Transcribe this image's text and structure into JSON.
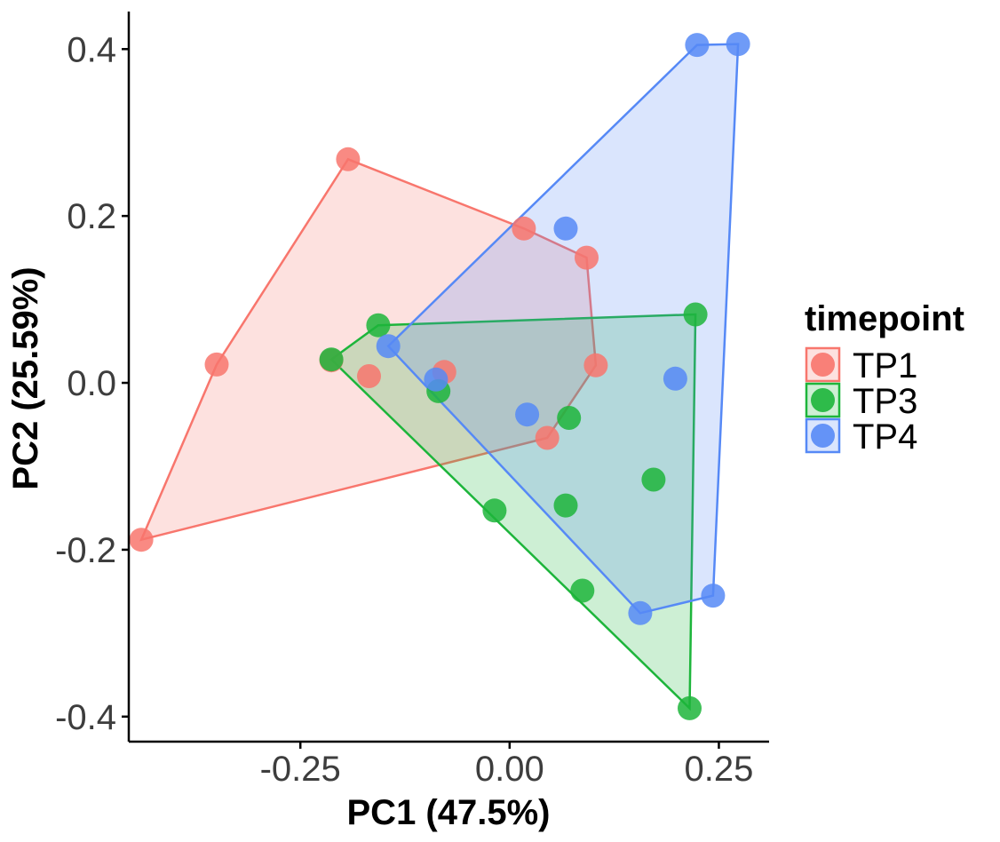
{
  "chart_data": {
    "type": "scatter",
    "title": "",
    "xlabel": "PC1 (47.5%)",
    "ylabel": "PC2 (25.59%)",
    "xlim": [
      -0.455,
      0.31
    ],
    "ylim": [
      -0.43,
      0.445
    ],
    "xticks": [
      {
        "value": -0.25,
        "label": "-0.25"
      },
      {
        "value": 0.0,
        "label": "0.00"
      },
      {
        "value": 0.25,
        "label": "0.25"
      }
    ],
    "yticks": [
      {
        "value": -0.4,
        "label": "-0.4"
      },
      {
        "value": -0.2,
        "label": "-0.2"
      },
      {
        "value": 0.0,
        "label": "0.0"
      },
      {
        "value": 0.2,
        "label": "0.2"
      },
      {
        "value": 0.4,
        "label": "0.4"
      }
    ],
    "grid": false,
    "legend": {
      "title": "timepoint",
      "position": "right"
    },
    "series": [
      {
        "name": "TP1",
        "color": "#F8766D",
        "hull": true,
        "points": [
          [
            -0.44,
            -0.188
          ],
          [
            -0.35,
            0.022
          ],
          [
            -0.193,
            0.268
          ],
          [
            0.017,
            0.185
          ],
          [
            0.092,
            0.15
          ],
          [
            0.103,
            0.021
          ],
          [
            0.045,
            -0.066
          ],
          [
            -0.078,
            0.013
          ],
          [
            -0.168,
            0.008
          ],
          [
            -0.213,
            0.027
          ]
        ],
        "hull_order": [
          [
            -0.44,
            -0.188
          ],
          [
            -0.35,
            0.022
          ],
          [
            -0.193,
            0.268
          ],
          [
            0.017,
            0.185
          ],
          [
            0.092,
            0.15
          ],
          [
            0.103,
            0.021
          ],
          [
            0.045,
            -0.066
          ]
        ]
      },
      {
        "name": "TP3",
        "color": "#1DB53B",
        "hull": true,
        "points": [
          [
            -0.213,
            0.028
          ],
          [
            -0.157,
            0.069
          ],
          [
            -0.085,
            -0.01
          ],
          [
            0.071,
            -0.042
          ],
          [
            0.067,
            -0.147
          ],
          [
            0.172,
            -0.116
          ],
          [
            0.222,
            0.082
          ],
          [
            -0.018,
            -0.153
          ],
          [
            0.087,
            -0.249
          ],
          [
            0.215,
            -0.39
          ]
        ],
        "hull_order": [
          [
            -0.213,
            0.028
          ],
          [
            -0.157,
            0.069
          ],
          [
            0.222,
            0.082
          ],
          [
            0.215,
            -0.39
          ]
        ]
      },
      {
        "name": "TP4",
        "color": "#5689F6",
        "hull": true,
        "points": [
          [
            -0.145,
            0.044
          ],
          [
            -0.088,
            0.004
          ],
          [
            0.067,
            0.185
          ],
          [
            0.224,
            0.405
          ],
          [
            0.273,
            0.406
          ],
          [
            0.021,
            -0.038
          ],
          [
            0.198,
            0.005
          ],
          [
            0.243,
            -0.255
          ],
          [
            0.156,
            -0.276
          ]
        ],
        "hull_order": [
          [
            -0.145,
            0.044
          ],
          [
            0.224,
            0.405
          ],
          [
            0.273,
            0.406
          ],
          [
            0.243,
            -0.255
          ],
          [
            0.156,
            -0.276
          ]
        ]
      }
    ]
  }
}
